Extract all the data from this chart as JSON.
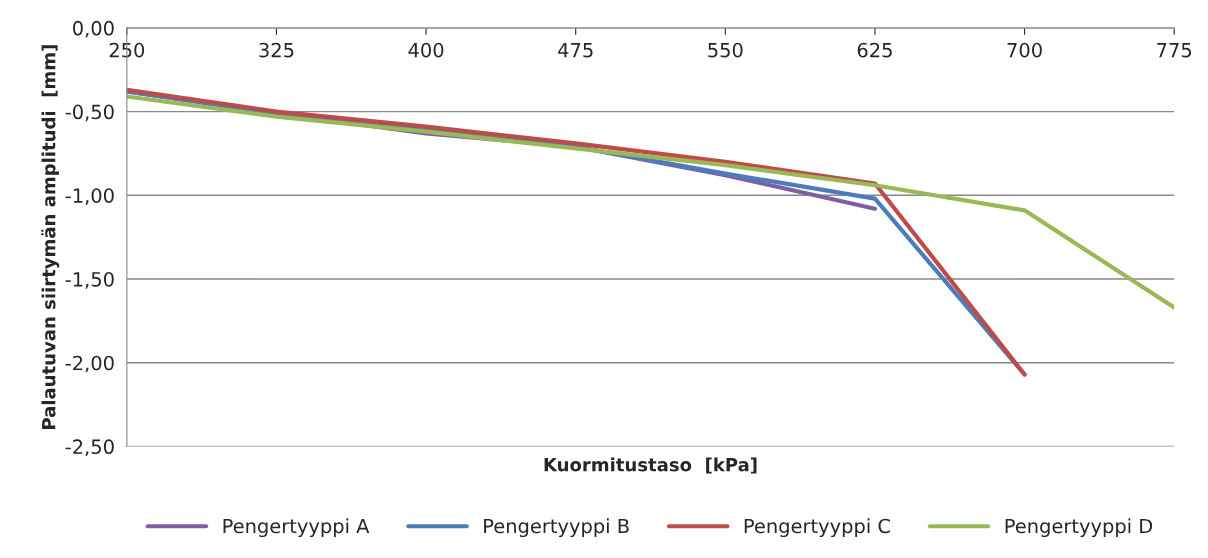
{
  "chart_data": {
    "type": "line",
    "xlabel": "Kuormitustaso  [kPa]",
    "ylabel": "Palautuvan siirtymän amplitudi  [mm]",
    "xlim": [
      250,
      775
    ],
    "xticks": [
      250,
      325,
      400,
      475,
      550,
      625,
      700,
      775
    ],
    "ylim": [
      -2.5,
      0
    ],
    "yticks": [
      {
        "value": -2.5,
        "label": "-2,50"
      },
      {
        "value": -2.0,
        "label": "-2,00"
      },
      {
        "value": -1.5,
        "label": "-1,50"
      },
      {
        "value": -1.0,
        "label": "-1,00"
      },
      {
        "value": -0.5,
        "label": "-0,50"
      },
      {
        "value": 0,
        "label": "0,00"
      }
    ],
    "grid": "y",
    "legend": "bottom",
    "marker": "none",
    "line_style": "solid",
    "x": [
      250,
      325,
      400,
      475,
      550,
      625,
      700,
      775
    ],
    "series": [
      {
        "name": "Pengertyyppi A",
        "color": "#7e5fa3",
        "values": [
          -0.38,
          -0.51,
          -0.63,
          -0.71,
          -0.88,
          -1.08,
          null,
          null
        ]
      },
      {
        "name": "Pengertyyppi B",
        "color": "#4a7ebb",
        "values": [
          -0.38,
          -0.51,
          -0.61,
          -0.71,
          -0.87,
          -1.02,
          -2.07,
          null
        ]
      },
      {
        "name": "Pengertyyppi C",
        "color": "#be4b48",
        "values": [
          -0.37,
          -0.5,
          -0.59,
          -0.69,
          -0.8,
          -0.93,
          -2.07,
          null
        ]
      },
      {
        "name": "Pengertyyppi D",
        "color": "#98b954",
        "values": [
          -0.41,
          -0.53,
          -0.62,
          -0.72,
          -0.82,
          -0.94,
          -1.09,
          -1.67
        ]
      }
    ]
  }
}
